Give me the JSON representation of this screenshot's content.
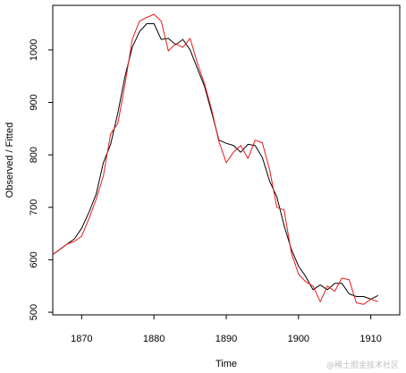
{
  "chart_data": {
    "type": "line",
    "xlabel": "Time",
    "ylabel": "Observed / Fitted",
    "xlim": [
      1866,
      1914
    ],
    "ylim": [
      495,
      1085
    ],
    "xticks": [
      1870,
      1880,
      1890,
      1900,
      1910
    ],
    "yticks": [
      500,
      600,
      700,
      800,
      900,
      1000
    ],
    "grid": false,
    "legend": "none",
    "series": [
      {
        "color": "#000000",
        "points": [
          [
            1866,
            610
          ],
          [
            1867,
            620
          ],
          [
            1868,
            630
          ],
          [
            1869,
            640
          ],
          [
            1870,
            660
          ],
          [
            1871,
            690
          ],
          [
            1872,
            725
          ],
          [
            1873,
            785
          ],
          [
            1874,
            820
          ],
          [
            1875,
            880
          ],
          [
            1876,
            950
          ],
          [
            1877,
            1005
          ],
          [
            1878,
            1035
          ],
          [
            1879,
            1050
          ],
          [
            1880,
            1050
          ],
          [
            1881,
            1020
          ],
          [
            1882,
            1022
          ],
          [
            1883,
            1010
          ],
          [
            1884,
            1020
          ],
          [
            1885,
            1000
          ],
          [
            1886,
            965
          ],
          [
            1887,
            930
          ],
          [
            1888,
            880
          ],
          [
            1889,
            828
          ],
          [
            1890,
            822
          ],
          [
            1891,
            818
          ],
          [
            1892,
            805
          ],
          [
            1893,
            820
          ],
          [
            1894,
            818
          ],
          [
            1895,
            795
          ],
          [
            1896,
            750
          ],
          [
            1897,
            720
          ],
          [
            1898,
            665
          ],
          [
            1899,
            620
          ],
          [
            1900,
            588
          ],
          [
            1901,
            568
          ],
          [
            1902,
            543
          ],
          [
            1903,
            552
          ],
          [
            1904,
            543
          ],
          [
            1905,
            555
          ],
          [
            1906,
            555
          ],
          [
            1907,
            535
          ],
          [
            1908,
            530
          ],
          [
            1909,
            530
          ],
          [
            1910,
            525
          ],
          [
            1911,
            532
          ]
        ]
      },
      {
        "color": "#e41a1c",
        "points": [
          [
            1866,
            610
          ],
          [
            1867,
            620
          ],
          [
            1868,
            630
          ],
          [
            1869,
            635
          ],
          [
            1870,
            645
          ],
          [
            1871,
            678
          ],
          [
            1872,
            715
          ],
          [
            1873,
            760
          ],
          [
            1874,
            840
          ],
          [
            1875,
            860
          ],
          [
            1876,
            935
          ],
          [
            1877,
            1020
          ],
          [
            1878,
            1055
          ],
          [
            1879,
            1062
          ],
          [
            1880,
            1068
          ],
          [
            1881,
            1055
          ],
          [
            1882,
            998
          ],
          [
            1883,
            1012
          ],
          [
            1884,
            1005
          ],
          [
            1885,
            1022
          ],
          [
            1886,
            975
          ],
          [
            1887,
            935
          ],
          [
            1888,
            885
          ],
          [
            1889,
            825
          ],
          [
            1890,
            785
          ],
          [
            1891,
            805
          ],
          [
            1892,
            818
          ],
          [
            1893,
            793
          ],
          [
            1894,
            828
          ],
          [
            1895,
            823
          ],
          [
            1896,
            772
          ],
          [
            1897,
            700
          ],
          [
            1898,
            695
          ],
          [
            1899,
            613
          ],
          [
            1900,
            573
          ],
          [
            1901,
            558
          ],
          [
            1902,
            550
          ],
          [
            1903,
            520
          ],
          [
            1904,
            550
          ],
          [
            1905,
            540
          ],
          [
            1906,
            565
          ],
          [
            1907,
            562
          ],
          [
            1908,
            518
          ],
          [
            1909,
            515
          ],
          [
            1910,
            525
          ],
          [
            1911,
            520
          ]
        ]
      }
    ]
  },
  "watermark": "@稀土掘金技术社区"
}
